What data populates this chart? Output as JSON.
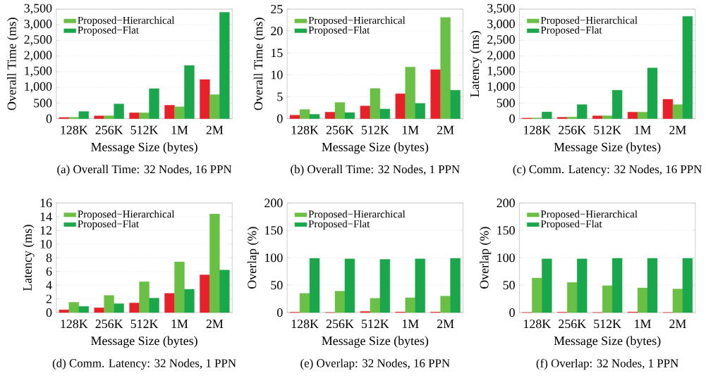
{
  "chart_data": [
    {
      "type": "bar",
      "title": "(a) Overall Time: 32 Nodes, 16 PPN",
      "xlabel": "Message Size (bytes)",
      "ylabel": "Overall Time (ms)",
      "categories": [
        "128K",
        "256K",
        "512K",
        "1M",
        "2M"
      ],
      "series": [
        {
          "color": "#e8202a",
          "values": [
            40,
            90,
            190,
            430,
            1250
          ]
        },
        {
          "name": "Proposed−Hierarchical",
          "color": "#6abf45",
          "values": [
            45,
            95,
            190,
            380,
            770
          ]
        },
        {
          "name": "Proposed−Flat",
          "color": "#1aa64a",
          "values": [
            230,
            470,
            960,
            1700,
            3400
          ]
        }
      ],
      "ylim": [
        0,
        3500
      ],
      "yticks": [
        0,
        500,
        {
          "value": 1000,
          "label": "1,000"
        },
        {
          "value": 1500,
          "label": "1,500"
        },
        {
          "value": 2000,
          "label": "2,000"
        },
        {
          "value": 2500,
          "label": "2,500"
        },
        {
          "value": 3000,
          "label": "3,000"
        },
        {
          "value": 3500,
          "label": "3,500"
        }
      ],
      "grid": "y",
      "legend": "top left"
    },
    {
      "type": "bar",
      "title": "(b) Overall Time: 32 Nodes, 1 PPN",
      "xlabel": "Message Size (bytes)",
      "ylabel": "Overall Time (ms)",
      "categories": [
        "128K",
        "256K",
        "512K",
        "1M",
        "2M"
      ],
      "series": [
        {
          "color": "#e8202a",
          "values": [
            0.8,
            1.5,
            2.9,
            5.7,
            11.2
          ]
        },
        {
          "name": "Proposed−Hierarchical",
          "color": "#6abf45",
          "values": [
            2.1,
            3.7,
            6.9,
            11.8,
            23.1
          ]
        },
        {
          "name": "Proposed−Flat",
          "color": "#1aa64a",
          "values": [
            1.0,
            1.4,
            2.2,
            3.5,
            6.5
          ]
        }
      ],
      "ylim": [
        0,
        25
      ],
      "yticks": [
        0,
        5,
        10,
        15,
        20,
        25
      ],
      "grid": "y",
      "legend": "top left"
    },
    {
      "type": "bar",
      "title": "(c) Comm. Latency: 32 Nodes, 16 PPN",
      "xlabel": "Message Size (bytes)",
      "ylabel": "Latency (ms)",
      "categories": [
        "128K",
        "256K",
        "512K",
        "1M",
        "2M"
      ],
      "series": [
        {
          "color": "#e8202a",
          "values": [
            20,
            45,
            90,
            210,
            620
          ]
        },
        {
          "name": "Proposed−Hierarchical",
          "color": "#6abf45",
          "values": [
            25,
            55,
            95,
            210,
            450
          ]
        },
        {
          "name": "Proposed−Flat",
          "color": "#1aa64a",
          "values": [
            215,
            450,
            910,
            1620,
            3270
          ]
        }
      ],
      "ylim": [
        0,
        3500
      ],
      "yticks": [
        0,
        500,
        {
          "value": 1000,
          "label": "1,000"
        },
        {
          "value": 1500,
          "label": "1,500"
        },
        {
          "value": 2000,
          "label": "2,000"
        },
        {
          "value": 2500,
          "label": "2,500"
        },
        {
          "value": 3000,
          "label": "3,000"
        },
        {
          "value": 3500,
          "label": "3,500"
        }
      ],
      "grid": "y",
      "legend": "top left"
    },
    {
      "type": "bar",
      "title": "(d) Comm. Latency: 32 Nodes, 1 PPN",
      "xlabel": "Message Size (bytes)",
      "ylabel": "Latency (ms)",
      "categories": [
        "128K",
        "256K",
        "512K",
        "1M",
        "2M"
      ],
      "series": [
        {
          "color": "#e8202a",
          "values": [
            0.4,
            0.7,
            1.4,
            2.8,
            5.5
          ]
        },
        {
          "name": "Proposed−Hierarchical",
          "color": "#6abf45",
          "values": [
            1.5,
            2.5,
            4.5,
            7.4,
            14.4
          ]
        },
        {
          "name": "Proposed−Flat",
          "color": "#1aa64a",
          "values": [
            0.9,
            1.3,
            2.1,
            3.4,
            6.2
          ]
        }
      ],
      "ylim": [
        0,
        16
      ],
      "yticks": [
        0,
        2,
        4,
        6,
        8,
        10,
        12,
        14,
        16
      ],
      "grid": "y",
      "legend": "top left"
    },
    {
      "type": "bar",
      "title": "(e) Overlap: 32 Nodes, 16 PPN",
      "xlabel": "Message Size (bytes)",
      "ylabel": "Overlap (%)",
      "categories": [
        "128K",
        "256K",
        "512K",
        "1M",
        "2M"
      ],
      "series": [
        {
          "color": "#e8202a",
          "values": [
            0.5,
            0,
            2,
            1,
            1
          ]
        },
        {
          "name": "Proposed−Hierarchical",
          "color": "#6abf45",
          "values": [
            35,
            39,
            26,
            27,
            30
          ]
        },
        {
          "name": "Proposed−Flat",
          "color": "#1aa64a",
          "values": [
            99,
            98,
            97,
            98,
            99
          ]
        }
      ],
      "ylim": [
        0,
        200
      ],
      "yticks": [
        0,
        50,
        100,
        150,
        200
      ],
      "grid": "y",
      "legend": "top left"
    },
    {
      "type": "bar",
      "title": "(f) Overlap: 32 Nodes, 1 PPN",
      "xlabel": "Message Size (bytes)",
      "ylabel": "Overlap (%)",
      "categories": [
        "128K",
        "256K",
        "512K",
        "1M",
        "2M"
      ],
      "series": [
        {
          "color": "#e8202a",
          "values": [
            0,
            0.5,
            0,
            1,
            0
          ]
        },
        {
          "name": "Proposed−Hierarchical",
          "color": "#6abf45",
          "values": [
            63,
            55,
            49,
            45,
            43
          ]
        },
        {
          "name": "Proposed−Flat",
          "color": "#1aa64a",
          "values": [
            98,
            98,
            99,
            99,
            99
          ]
        }
      ],
      "ylim": [
        0,
        200
      ],
      "yticks": [
        0,
        50,
        100,
        150,
        200
      ],
      "grid": "y",
      "legend": "top left"
    }
  ]
}
